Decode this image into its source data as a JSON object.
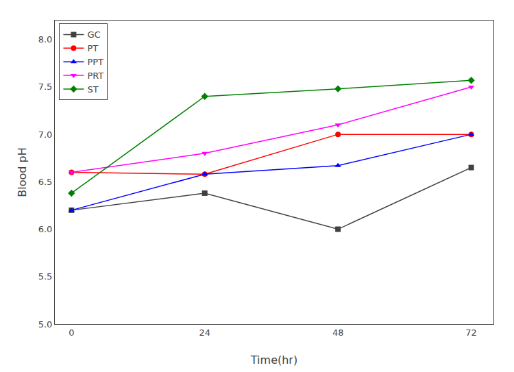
{
  "chart_data": {
    "type": "line",
    "x": [
      0,
      24,
      48,
      72
    ],
    "series": [
      {
        "name": "GC",
        "color": "#404040",
        "marker": "square",
        "values": [
          6.2,
          6.38,
          6.0,
          6.65
        ]
      },
      {
        "name": "PT",
        "color": "#ff0000",
        "marker": "circle",
        "values": [
          6.6,
          6.58,
          7.0,
          7.0
        ]
      },
      {
        "name": "PPT",
        "color": "#0000ff",
        "marker": "triangle-up",
        "values": [
          6.2,
          6.58,
          6.67,
          7.0
        ]
      },
      {
        "name": "PRT",
        "color": "#ff00ff",
        "marker": "triangle-down",
        "values": [
          6.6,
          6.8,
          7.1,
          7.5
        ]
      },
      {
        "name": "ST",
        "color": "#008000",
        "marker": "diamond",
        "values": [
          6.38,
          7.4,
          7.48,
          7.57
        ]
      }
    ],
    "xlabel": "Time(hr)",
    "ylabel": "Blood pH",
    "xlim": [
      -3,
      76
    ],
    "ylim": [
      5.0,
      8.2
    ],
    "xticks": [
      0,
      24,
      48,
      72
    ],
    "yticks": [
      {
        "value": 5.0,
        "label": "5.0"
      },
      5.5,
      {
        "value": 6.0,
        "label": "6.0"
      },
      6.5,
      {
        "value": 7.0,
        "label": "7.0"
      },
      7.5,
      {
        "value": 8.0,
        "label": "8.0"
      }
    ],
    "grid": false,
    "legend": "upper left"
  }
}
